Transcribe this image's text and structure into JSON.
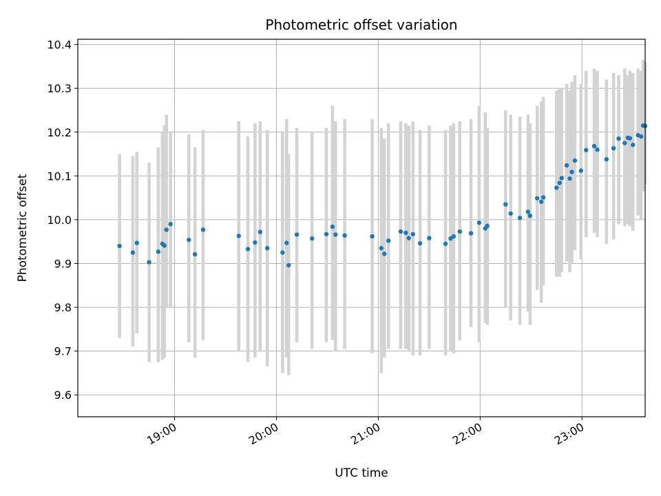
{
  "chart_data": {
    "type": "scatter",
    "title": "Photometric offset variation",
    "xlabel": "UTC time",
    "ylabel": "Photometric offset",
    "x_unit": "hours UTC",
    "xlim": [
      18.05,
      23.62
    ],
    "ylim": [
      9.55,
      10.412
    ],
    "x_ticks": [
      {
        "value": 19,
        "label": "19:00"
      },
      {
        "value": 20,
        "label": "20:00"
      },
      {
        "value": 21,
        "label": "21:00"
      },
      {
        "value": 22,
        "label": "22:00"
      },
      {
        "value": 23,
        "label": "23:00"
      }
    ],
    "y_ticks": [
      {
        "value": 9.6,
        "label": "9.6"
      },
      {
        "value": 9.7,
        "label": "9.7"
      },
      {
        "value": 9.8,
        "label": "9.8"
      },
      {
        "value": 9.9,
        "label": "9.9"
      },
      {
        "value": 10.0,
        "label": "10.0"
      },
      {
        "value": 10.1,
        "label": "10.1"
      },
      {
        "value": 10.2,
        "label": "10.2"
      },
      {
        "value": 10.3,
        "label": "10.3"
      },
      {
        "value": 10.4,
        "label": "10.4"
      }
    ],
    "grid": true,
    "legend": "none",
    "colors": {
      "marker": "#1f77b4",
      "errorbar": "#d3d3d3",
      "grid": "#b0b0b0"
    },
    "series": [
      {
        "x": [
          18.46,
          18.59,
          18.63,
          18.75,
          18.84,
          18.88,
          18.9,
          18.92,
          18.96,
          19.14,
          19.2,
          19.28,
          19.63,
          19.72,
          19.79,
          19.84,
          19.91,
          20.06,
          20.1,
          20.12,
          20.2,
          20.35,
          20.49,
          20.55,
          20.58,
          20.67,
          20.94,
          21.03,
          21.06,
          21.1,
          21.22,
          21.27,
          21.3,
          21.34,
          21.41,
          21.5,
          21.66,
          21.71,
          21.74,
          21.8,
          21.91,
          21.99,
          22.05,
          22.07,
          22.25,
          22.3,
          22.39,
          22.47,
          22.49,
          22.56,
          22.6,
          22.62,
          22.75,
          22.78,
          22.8,
          22.85,
          22.88,
          22.9,
          22.93,
          22.99,
          23.04,
          23.12,
          23.15,
          23.24,
          23.31,
          23.36,
          23.42,
          23.45,
          23.47,
          23.5,
          23.55,
          23.58,
          23.6,
          23.62
        ],
        "y": [
          9.94,
          9.925,
          9.947,
          9.903,
          9.927,
          9.945,
          9.941,
          9.977,
          9.99,
          9.954,
          9.921,
          9.977,
          9.963,
          9.933,
          9.948,
          9.972,
          9.935,
          9.925,
          9.947,
          9.896,
          9.966,
          9.957,
          9.967,
          9.984,
          9.966,
          9.964,
          9.962,
          9.935,
          9.922,
          9.952,
          9.973,
          9.97,
          9.958,
          9.967,
          9.946,
          9.958,
          9.945,
          9.957,
          9.962,
          9.973,
          9.969,
          9.993,
          9.98,
          9.986,
          10.035,
          10.014,
          10.004,
          10.018,
          10.009,
          10.049,
          10.041,
          10.051,
          10.073,
          10.084,
          10.095,
          10.124,
          10.094,
          10.109,
          10.135,
          10.112,
          10.159,
          10.168,
          10.16,
          10.138,
          10.163,
          10.185,
          10.175,
          10.187,
          10.186,
          10.171,
          10.193,
          10.19,
          10.215,
          10.214
        ],
        "y_low": [
          9.73,
          9.71,
          9.74,
          9.675,
          9.675,
          9.68,
          9.685,
          9.8,
          9.8,
          9.72,
          9.685,
          9.725,
          9.7,
          9.675,
          9.685,
          9.7,
          9.665,
          9.65,
          9.685,
          9.645,
          9.72,
          9.705,
          9.72,
          9.725,
          9.7,
          9.705,
          9.695,
          9.65,
          9.685,
          9.705,
          9.705,
          9.705,
          9.7,
          9.69,
          9.69,
          9.705,
          9.69,
          9.7,
          9.695,
          9.725,
          9.755,
          9.72,
          9.765,
          9.76,
          9.8,
          9.77,
          9.76,
          9.79,
          9.76,
          9.84,
          9.81,
          9.85,
          9.87,
          9.87,
          9.88,
          9.905,
          9.88,
          9.9,
          9.93,
          9.91,
          9.96,
          9.97,
          9.96,
          9.945,
          9.955,
          9.99,
          9.985,
          9.99,
          9.985,
          9.975,
          10.01,
          10.0,
          10.065,
          10.08
        ],
        "y_high": [
          10.15,
          10.145,
          10.155,
          10.13,
          10.165,
          10.2,
          10.215,
          10.24,
          10.2,
          10.195,
          10.165,
          10.205,
          10.225,
          10.19,
          10.22,
          10.225,
          10.205,
          10.2,
          10.23,
          10.15,
          10.21,
          10.2,
          10.21,
          10.26,
          10.225,
          10.23,
          10.23,
          10.21,
          10.185,
          10.22,
          10.225,
          10.22,
          10.215,
          10.225,
          10.205,
          10.215,
          10.205,
          10.215,
          10.22,
          10.225,
          10.23,
          10.26,
          10.245,
          10.21,
          10.25,
          10.24,
          10.235,
          10.24,
          10.22,
          10.26,
          10.27,
          10.28,
          10.295,
          10.3,
          10.3,
          10.31,
          10.295,
          10.315,
          10.33,
          10.31,
          10.34,
          10.345,
          10.34,
          10.32,
          10.335,
          10.33,
          10.345,
          10.33,
          10.34,
          10.335,
          10.345,
          10.34,
          10.365,
          10.36
        ]
      }
    ]
  }
}
